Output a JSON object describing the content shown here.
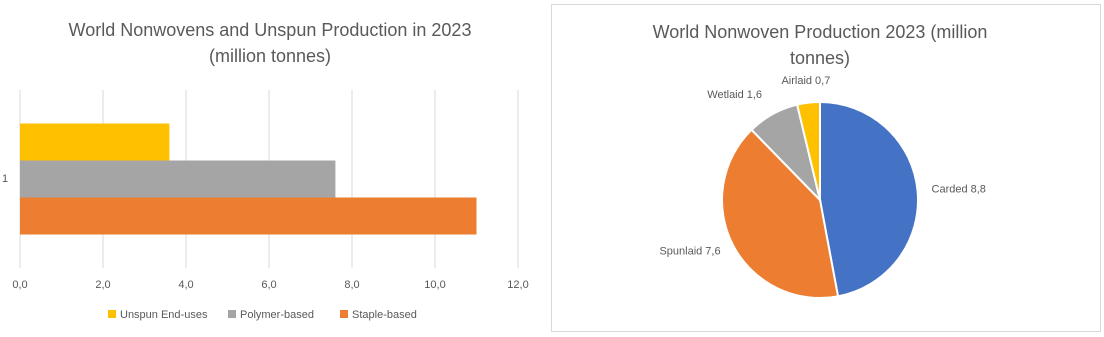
{
  "chart_data": [
    {
      "type": "bar",
      "orientation": "horizontal",
      "title": "World Nonwovens and Unspun Production in 2023 (million tonnes)",
      "categories": [
        "1"
      ],
      "series": [
        {
          "name": "Unspun End-uses",
          "color": "#ffc000",
          "values": [
            3.6
          ]
        },
        {
          "name": "Polymer-based",
          "color": "#a5a5a5",
          "values": [
            7.6
          ]
        },
        {
          "name": "Staple-based",
          "color": "#ed7d31",
          "values": [
            11.0
          ]
        }
      ],
      "xlim": [
        0,
        12
      ],
      "xticks": [
        {
          "value": 0,
          "label": "0,0"
        },
        {
          "value": 2,
          "label": "2,0"
        },
        {
          "value": 4,
          "label": "4,0"
        },
        {
          "value": 6,
          "label": "6,0"
        },
        {
          "value": 8,
          "label": "8,0"
        },
        {
          "value": 10,
          "label": "10,0"
        },
        {
          "value": 12,
          "label": "12,0"
        }
      ],
      "grid": true,
      "legend": "bottom"
    },
    {
      "type": "pie",
      "title": "World Nonwoven Production 2023 (million tonnes)",
      "categories": [
        "Carded",
        "Spunlaid",
        "Wetlaid",
        "Airlaid"
      ],
      "values": [
        8.8,
        7.6,
        1.6,
        0.7
      ],
      "value_labels": [
        "8,8",
        "7,6",
        "1,6",
        "0,7"
      ],
      "colors": [
        "#4472c4",
        "#ed7d31",
        "#a5a5a5",
        "#ffc000"
      ]
    }
  ]
}
